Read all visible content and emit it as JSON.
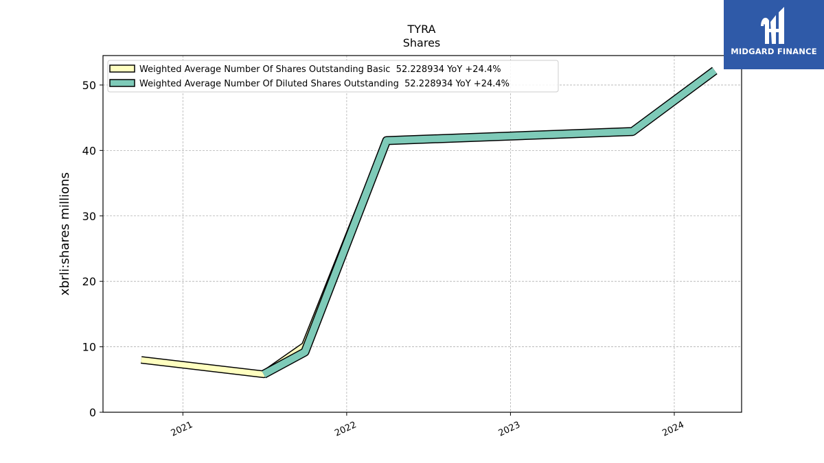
{
  "chart_data": {
    "type": "line",
    "title": "TYRA",
    "subtitle": "Shares",
    "xlabel": "",
    "ylabel": "xbrli:shares millions",
    "x_ticks": [
      "2021",
      "2022",
      "2023",
      "2024"
    ],
    "y_ticks": [
      0,
      10,
      20,
      30,
      40,
      50
    ],
    "ylim": [
      0,
      54.5
    ],
    "xlim": [
      "2020-07-07",
      "2024-05-30"
    ],
    "grid": true,
    "legend_position": "top-left",
    "series": [
      {
        "name": "Weighted Average Number Of Shares Outstanding Basic  52.228934 YoY +24.4%",
        "color": "#ffffc0",
        "x": [
          "2020-09-30",
          "2021-06-30",
          "2021-09-30",
          "2022-03-31",
          "2023-09-30",
          "2024-03-31"
        ],
        "y": [
          8.0,
          5.8,
          10.2,
          41.5,
          42.9,
          52.2
        ]
      },
      {
        "name": "Weighted Average Number Of Diluted Shares Outstanding  52.228934 YoY +24.4%",
        "color": "#7ecab8",
        "x": [
          "2021-06-30",
          "2021-09-30",
          "2022-03-31",
          "2023-09-30",
          "2024-03-31"
        ],
        "y": [
          5.8,
          9.2,
          41.5,
          42.9,
          52.2
        ]
      }
    ]
  },
  "logo": {
    "text": "MIDGARD FINANCE",
    "color": "#2f5aa8"
  }
}
